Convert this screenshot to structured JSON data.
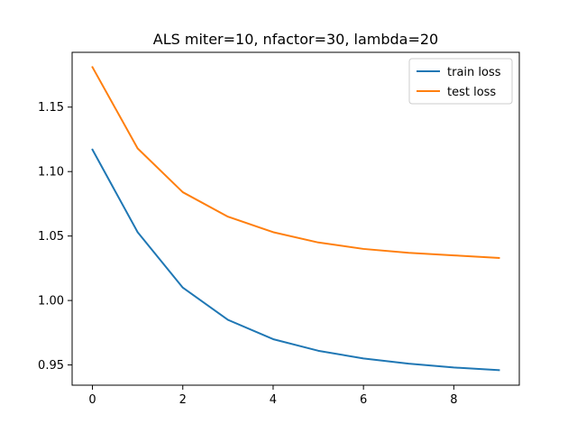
{
  "chart_data": {
    "type": "line",
    "title": "ALS miter=10, nfactor=30, lambda=20",
    "xlabel": "",
    "ylabel": "",
    "x": [
      0,
      1,
      2,
      3,
      4,
      5,
      6,
      7,
      8,
      9
    ],
    "xlim": [
      -0.45,
      9.45
    ],
    "ylim": [
      0.9343,
      1.1925
    ],
    "x_ticks": [
      0,
      2,
      4,
      6,
      8
    ],
    "x_tick_labels": [
      "0",
      "2",
      "4",
      "6",
      "8"
    ],
    "y_ticks": [
      0.95,
      1.0,
      1.05,
      1.1,
      1.15
    ],
    "y_tick_labels": [
      "0.95",
      "1.00",
      "1.05",
      "1.10",
      "1.15"
    ],
    "grid": false,
    "legend_position": "top-right",
    "series": [
      {
        "name": "train loss",
        "color": "#1f77b4",
        "values": [
          1.117,
          1.053,
          1.01,
          0.985,
          0.97,
          0.961,
          0.955,
          0.951,
          0.948,
          0.946
        ]
      },
      {
        "name": "test loss",
        "color": "#ff7f0e",
        "values": [
          1.181,
          1.118,
          1.084,
          1.065,
          1.053,
          1.045,
          1.04,
          1.037,
          1.035,
          1.033
        ]
      }
    ]
  }
}
